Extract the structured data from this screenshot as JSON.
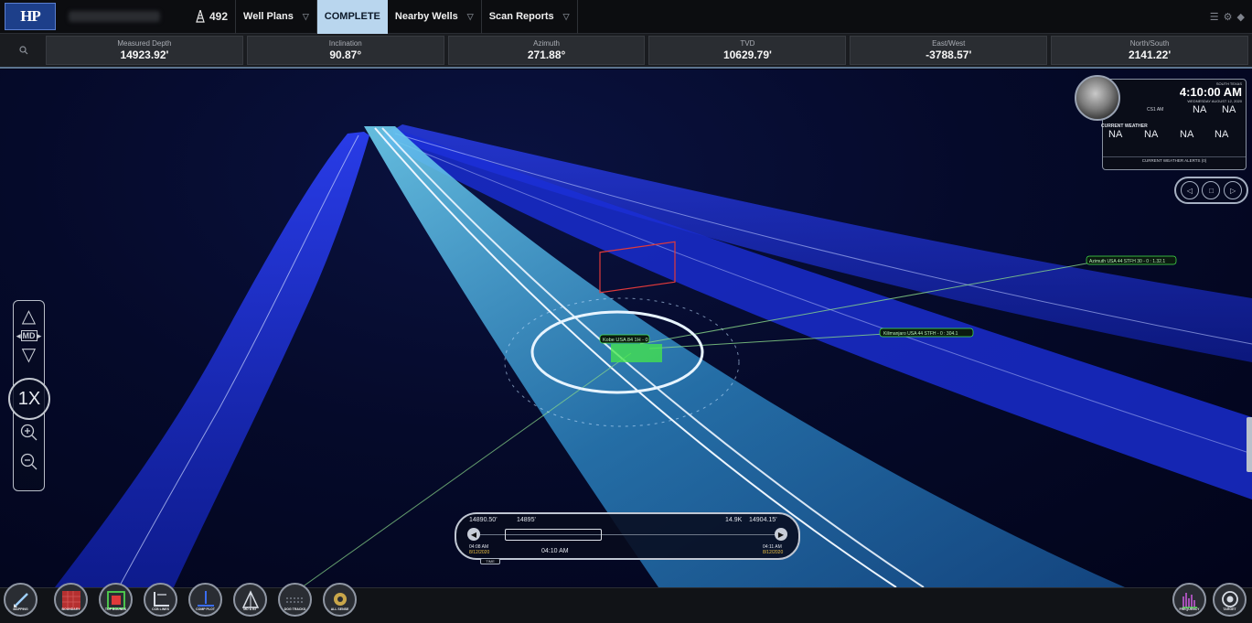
{
  "app": {
    "logo_text": "HP"
  },
  "header": {
    "rig_number": "492",
    "tabs": [
      {
        "label": "Well Plans",
        "active": false,
        "dropdown": true
      },
      {
        "label": "COMPLETE",
        "active": true,
        "dropdown": false
      },
      {
        "label": "Nearby Wells",
        "active": false,
        "dropdown": true
      },
      {
        "label": "Scan Reports",
        "active": false,
        "dropdown": true
      }
    ]
  },
  "stats": [
    {
      "label": "Measured Depth",
      "value": "14923.92'"
    },
    {
      "label": "Inclination",
      "value": "90.87°"
    },
    {
      "label": "Azimuth",
      "value": "271.88°"
    },
    {
      "label": "TVD",
      "value": "10629.79'"
    },
    {
      "label": "East/West",
      "value": "-3788.57'"
    },
    {
      "label": "North/South",
      "value": "2141.22'"
    }
  ],
  "nav_control": {
    "mode": "MD",
    "zoom_level": "1X"
  },
  "time_widget": {
    "region": "SOUTH TEXAS",
    "time": "4:10:00 AM",
    "date": "WEDNESDAY AUGUST 12, 2020",
    "sun_value": "NA",
    "moon_value": "NA",
    "status_text": "CS1 AM",
    "weather_title": "CURRENT WEATHER",
    "weather_values": [
      "NA",
      "NA",
      "NA",
      "NA"
    ],
    "alerts_text": "CURRENT WEATHER ALERTS (0)"
  },
  "scene_labels": {
    "target_label": "Kobe USA 84 1H - 0",
    "label_mid": "Kilimanjaro USA 44 STFH - 0 : 304.1",
    "label_right": "Azimuth USA 44 STFH 30 - 0 : 1.32.1"
  },
  "timeline": {
    "left_depth": "14890.50'",
    "mid_depth": "14895'",
    "right_mark": "14.9K",
    "right_depth": "14904.15'",
    "start_time": "04:08 AM",
    "start_date": "8/12/2020",
    "current_time": "04:10 AM",
    "end_time": "04:11 AM",
    "end_date": "8/12/2020",
    "tag": "TIME"
  },
  "toolbar": {
    "tools": [
      "MAPPING",
      "BOUNDARY",
      "TOP BOUNDS",
      "CCB LINES",
      "COMP PLOT",
      "MD & BT",
      "DOG TRACKS",
      "ALL SENSE"
    ],
    "right_tools": [
      "FREQUENCY",
      "TARGET"
    ]
  },
  "colors": {
    "accent_tab": "#b9d6ee",
    "tube_main": "#3aa8e0",
    "tube_side": "#1c2fd8",
    "target_green": "#46e84a",
    "target_red": "#e03a3a",
    "date_yellow": "#f0c445"
  }
}
